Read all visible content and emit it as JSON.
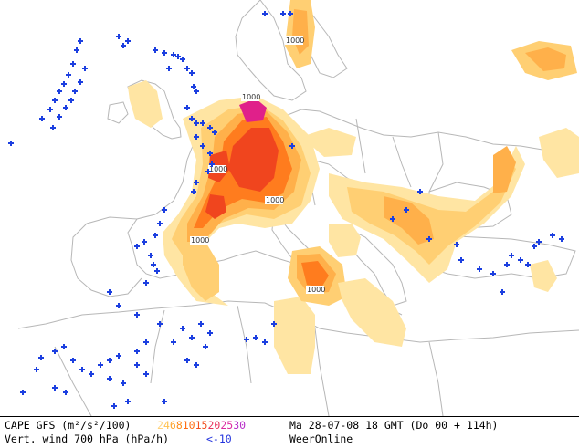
{
  "legend": {
    "cape_label": "CAPE GFS (m²/s²/100)",
    "wind_label": "Vert. wind 700 hPa (hPa/h)",
    "scale": [
      {
        "t": "2",
        "c": "#ffd27a"
      },
      {
        "t": "4",
        "c": "#ffc04c"
      },
      {
        "t": "6",
        "c": "#ffa52e"
      },
      {
        "t": "8",
        "c": "#ff8c1a"
      },
      {
        "t": "10",
        "c": "#ff6a10"
      },
      {
        "t": "15",
        "c": "#f25020"
      },
      {
        "t": "20",
        "c": "#e8305a"
      },
      {
        "t": "25",
        "c": "#dc2aa0"
      },
      {
        "t": "30",
        "c": "#b82cc8"
      }
    ],
    "wind_value": "<-10",
    "valid_time": "Ma 28-07-08 18 GMT (Do 00 + 114h)",
    "source": "WeerOnline"
  },
  "labels": {
    "contour": "1000"
  },
  "colors": {
    "land": "#ffffff",
    "border": "#b7b7b7",
    "cape_light": "#ffe5a3",
    "cape_mid": "#ffcf73",
    "cape_orange": "#ffb04a",
    "cape_dark": "#ff7c1e",
    "cape_red": "#f0451e",
    "cape_magenta": "#e0208a",
    "marker": "#1c3fe0"
  },
  "icons": [
    "cross-marker"
  ]
}
